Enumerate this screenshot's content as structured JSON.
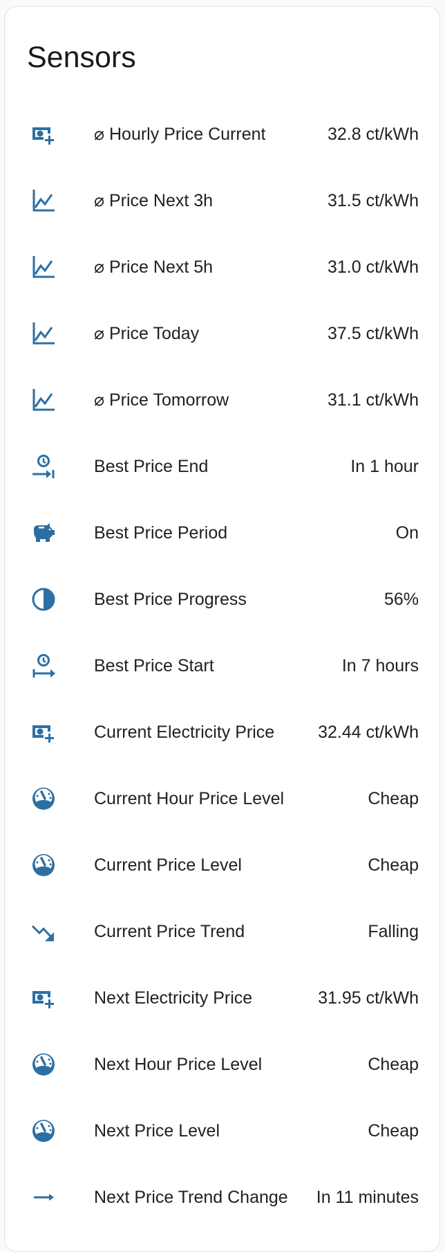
{
  "card": {
    "title": "Sensors"
  },
  "accent_color": "#2d6fa3",
  "rows": [
    {
      "icon": "cash-plus-icon",
      "name": "⌀ Hourly Price Current",
      "value": "32.8 ct/kWh"
    },
    {
      "icon": "chart-line-icon",
      "name": "⌀ Price Next 3h",
      "value": "31.5 ct/kWh"
    },
    {
      "icon": "chart-line-icon",
      "name": "⌀ Price Next 5h",
      "value": "31.0 ct/kWh"
    },
    {
      "icon": "chart-line-icon",
      "name": "⌀ Price Today",
      "value": "37.5 ct/kWh"
    },
    {
      "icon": "chart-line-icon",
      "name": "⌀ Price Tomorrow",
      "value": "31.1 ct/kWh"
    },
    {
      "icon": "clock-end-icon",
      "name": "Best Price End",
      "value": "In 1 hour"
    },
    {
      "icon": "piggy-bank-icon",
      "name": "Best Price Period",
      "value": "On"
    },
    {
      "icon": "circle-half-icon",
      "name": "Best Price Progress",
      "value": "56%"
    },
    {
      "icon": "clock-start-icon",
      "name": "Best Price Start",
      "value": "In 7 hours"
    },
    {
      "icon": "cash-plus-icon",
      "name": "Current Electricity Price",
      "value": "32.44 ct/kWh"
    },
    {
      "icon": "gauge-low-icon",
      "name": "Current Hour Price Level",
      "value": "Cheap"
    },
    {
      "icon": "gauge-low-icon",
      "name": "Current Price Level",
      "value": "Cheap"
    },
    {
      "icon": "trending-down-icon",
      "name": "Current Price Trend",
      "value": "Falling"
    },
    {
      "icon": "cash-plus-icon",
      "name": "Next Electricity Price",
      "value": "31.95 ct/kWh"
    },
    {
      "icon": "gauge-low-icon",
      "name": "Next Hour Price Level",
      "value": "Cheap"
    },
    {
      "icon": "gauge-low-icon",
      "name": "Next Price Level",
      "value": "Cheap"
    },
    {
      "icon": "arrow-right-icon",
      "name": "Next Price Trend Change",
      "value": "In 11 minutes"
    }
  ]
}
